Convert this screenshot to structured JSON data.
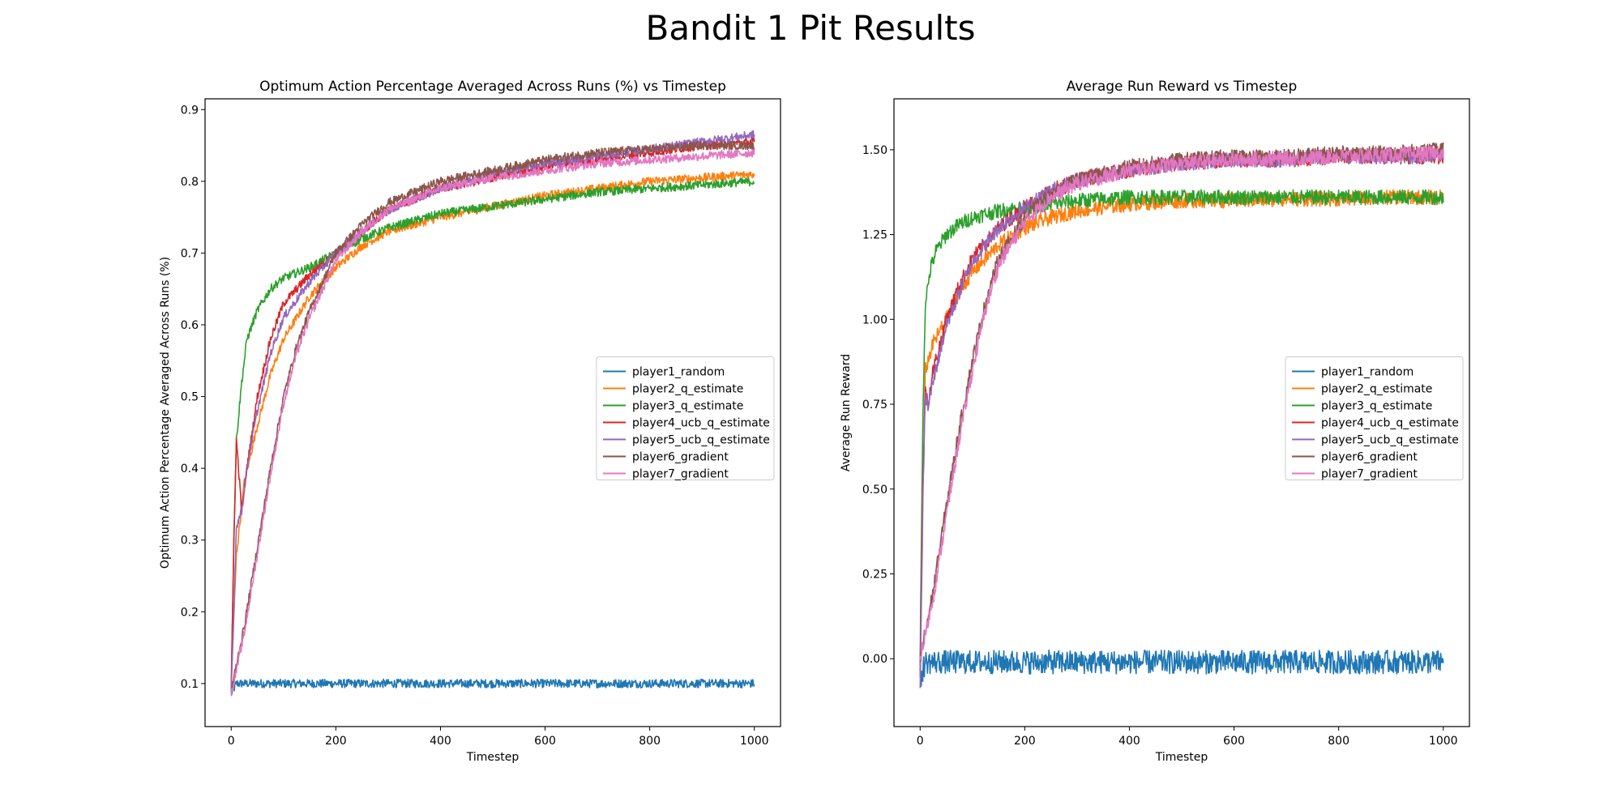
{
  "figure": {
    "title": "Bandit 1 Pit Results"
  },
  "palette": {
    "player1_random": "#1f77b4",
    "player2_q_estimate": "#ff7f0e",
    "player3_q_estimate": "#2ca02c",
    "player4_ucb_q_estimate": "#d62728",
    "player5_ucb_q_estimate": "#9467bd",
    "player6_gradient": "#8c564b",
    "player7_gradient": "#e377c2"
  },
  "chart_data": [
    {
      "type": "line",
      "title": "Optimum Action Percentage Averaged Across Runs (%) vs Timestep",
      "xlabel": "Timestep",
      "ylabel": "Optimum Action Percentage Averaged Across Runs (%)",
      "xlim": [
        -50,
        1050
      ],
      "ylim": [
        0.04,
        0.915
      ],
      "xticks": [
        0,
        200,
        400,
        600,
        800,
        1000
      ],
      "xtick_labels": [
        "0",
        "200",
        "400",
        "600",
        "800",
        "1000"
      ],
      "yticks": [
        0.1,
        0.2,
        0.3,
        0.4,
        0.5,
        0.6,
        0.7,
        0.8,
        0.9
      ],
      "ytick_labels": [
        "0.1",
        "0.2",
        "0.3",
        "0.4",
        "0.5",
        "0.6",
        "0.7",
        "0.8",
        "0.9"
      ],
      "grid": false,
      "legend_position": "center-right",
      "series": [
        {
          "name": "player1_random",
          "x": [
            0,
            10,
            50,
            100,
            150,
            200,
            300,
            400,
            500,
            600,
            700,
            800,
            900,
            1000
          ],
          "y": [
            0.085,
            0.1,
            0.1,
            0.1,
            0.1,
            0.1,
            0.1,
            0.1,
            0.1,
            0.1,
            0.1,
            0.1,
            0.1,
            0.1
          ]
        },
        {
          "name": "player2_q_estimate",
          "x": [
            0,
            10,
            25,
            50,
            75,
            100,
            150,
            200,
            250,
            300,
            400,
            500,
            600,
            700,
            800,
            900,
            1000
          ],
          "y": [
            0.1,
            0.28,
            0.38,
            0.46,
            0.53,
            0.58,
            0.64,
            0.68,
            0.71,
            0.73,
            0.75,
            0.765,
            0.78,
            0.79,
            0.8,
            0.805,
            0.81
          ]
        },
        {
          "name": "player3_q_estimate",
          "x": [
            0,
            5,
            10,
            20,
            30,
            50,
            75,
            100,
            150,
            200,
            250,
            300,
            400,
            500,
            600,
            700,
            800,
            900,
            1000
          ],
          "y": [
            0.09,
            0.3,
            0.44,
            0.52,
            0.58,
            0.62,
            0.65,
            0.665,
            0.68,
            0.7,
            0.72,
            0.735,
            0.755,
            0.765,
            0.775,
            0.785,
            0.79,
            0.795,
            0.8
          ]
        },
        {
          "name": "player4_ucb_q_estimate",
          "x": [
            0,
            5,
            10,
            20,
            30,
            50,
            75,
            100,
            150,
            200,
            250,
            300,
            400,
            500,
            600,
            700,
            800,
            900,
            1000
          ],
          "y": [
            0.09,
            0.3,
            0.44,
            0.34,
            0.4,
            0.5,
            0.58,
            0.63,
            0.67,
            0.7,
            0.73,
            0.76,
            0.79,
            0.805,
            0.82,
            0.83,
            0.84,
            0.85,
            0.855
          ]
        },
        {
          "name": "player5_ucb_q_estimate",
          "x": [
            0,
            5,
            10,
            20,
            30,
            50,
            75,
            100,
            150,
            200,
            250,
            300,
            400,
            500,
            600,
            700,
            800,
            900,
            1000
          ],
          "y": [
            0.09,
            0.2,
            0.32,
            0.34,
            0.4,
            0.48,
            0.56,
            0.61,
            0.66,
            0.7,
            0.73,
            0.76,
            0.79,
            0.81,
            0.825,
            0.835,
            0.845,
            0.855,
            0.865
          ]
        },
        {
          "name": "player6_gradient",
          "x": [
            0,
            25,
            50,
            75,
            100,
            125,
            150,
            200,
            250,
            300,
            400,
            500,
            600,
            700,
            800,
            900,
            1000
          ],
          "y": [
            0.09,
            0.18,
            0.29,
            0.4,
            0.5,
            0.57,
            0.62,
            0.7,
            0.74,
            0.77,
            0.8,
            0.815,
            0.83,
            0.84,
            0.845,
            0.85,
            0.85
          ]
        },
        {
          "name": "player7_gradient",
          "x": [
            0,
            25,
            50,
            75,
            100,
            125,
            150,
            200,
            250,
            300,
            400,
            500,
            600,
            700,
            800,
            900,
            1000
          ],
          "y": [
            0.085,
            0.17,
            0.28,
            0.39,
            0.49,
            0.56,
            0.61,
            0.69,
            0.73,
            0.76,
            0.79,
            0.805,
            0.815,
            0.825,
            0.83,
            0.835,
            0.84
          ]
        }
      ]
    },
    {
      "type": "line",
      "title": "Average Run Reward vs Timestep",
      "xlabel": "Timestep",
      "ylabel": "Average Run Reward",
      "xlim": [
        -50,
        1050
      ],
      "ylim": [
        -0.2,
        1.65
      ],
      "xticks": [
        0,
        200,
        400,
        600,
        800,
        1000
      ],
      "xtick_labels": [
        "0",
        "200",
        "400",
        "600",
        "800",
        "1000"
      ],
      "yticks": [
        0,
        0.25,
        0.5,
        0.75,
        1.0,
        1.25,
        1.5
      ],
      "ytick_labels": [
        "0.00",
        "0.25",
        "0.50",
        "0.75",
        "1.00",
        "1.25",
        "1.50"
      ],
      "grid": false,
      "legend_position": "center-right",
      "series": [
        {
          "name": "player1_random",
          "x": [
            0,
            10,
            100,
            200,
            300,
            400,
            500,
            600,
            700,
            800,
            900,
            1000
          ],
          "y": [
            -0.06,
            -0.01,
            -0.01,
            -0.01,
            -0.01,
            -0.01,
            -0.01,
            -0.01,
            -0.01,
            -0.01,
            -0.01,
            -0.01
          ]
        },
        {
          "name": "player2_q_estimate",
          "x": [
            0,
            10,
            25,
            50,
            75,
            100,
            150,
            200,
            250,
            300,
            400,
            500,
            600,
            700,
            800,
            900,
            1000
          ],
          "y": [
            0.0,
            0.85,
            0.93,
            1.0,
            1.08,
            1.14,
            1.22,
            1.27,
            1.3,
            1.32,
            1.34,
            1.35,
            1.35,
            1.355,
            1.355,
            1.36,
            1.36
          ]
        },
        {
          "name": "player3_q_estimate",
          "x": [
            0,
            5,
            10,
            20,
            30,
            50,
            75,
            100,
            150,
            200,
            250,
            300,
            400,
            500,
            600,
            700,
            800,
            900,
            1000
          ],
          "y": [
            0.0,
            0.7,
            1.05,
            1.15,
            1.2,
            1.25,
            1.28,
            1.3,
            1.32,
            1.33,
            1.34,
            1.35,
            1.36,
            1.36,
            1.36,
            1.36,
            1.36,
            1.36,
            1.36
          ]
        },
        {
          "name": "player4_ucb_q_estimate",
          "x": [
            0,
            5,
            10,
            15,
            25,
            50,
            75,
            100,
            150,
            200,
            250,
            300,
            400,
            500,
            600,
            700,
            800,
            900,
            1000
          ],
          "y": [
            -0.05,
            0.5,
            0.8,
            0.75,
            0.85,
            1.0,
            1.1,
            1.18,
            1.27,
            1.33,
            1.38,
            1.41,
            1.44,
            1.46,
            1.47,
            1.47,
            1.48,
            1.48,
            1.48
          ]
        },
        {
          "name": "player5_ucb_q_estimate",
          "x": [
            0,
            5,
            10,
            15,
            25,
            50,
            75,
            100,
            150,
            200,
            250,
            300,
            400,
            500,
            600,
            700,
            800,
            900,
            1000
          ],
          "y": [
            -0.1,
            0.45,
            0.78,
            0.74,
            0.82,
            0.98,
            1.08,
            1.17,
            1.27,
            1.33,
            1.38,
            1.41,
            1.44,
            1.46,
            1.47,
            1.47,
            1.48,
            1.48,
            1.48
          ]
        },
        {
          "name": "player6_gradient",
          "x": [
            0,
            25,
            50,
            75,
            100,
            125,
            150,
            200,
            250,
            300,
            400,
            500,
            600,
            700,
            800,
            900,
            1000
          ],
          "y": [
            0.0,
            0.2,
            0.45,
            0.68,
            0.88,
            1.05,
            1.18,
            1.3,
            1.37,
            1.41,
            1.45,
            1.47,
            1.48,
            1.48,
            1.49,
            1.49,
            1.5
          ]
        },
        {
          "name": "player7_gradient",
          "x": [
            0,
            25,
            50,
            75,
            100,
            125,
            150,
            200,
            250,
            300,
            400,
            500,
            600,
            700,
            800,
            900,
            1000
          ],
          "y": [
            0.0,
            0.18,
            0.42,
            0.65,
            0.85,
            1.03,
            1.16,
            1.29,
            1.36,
            1.4,
            1.44,
            1.46,
            1.47,
            1.475,
            1.48,
            1.485,
            1.49
          ]
        }
      ]
    }
  ]
}
